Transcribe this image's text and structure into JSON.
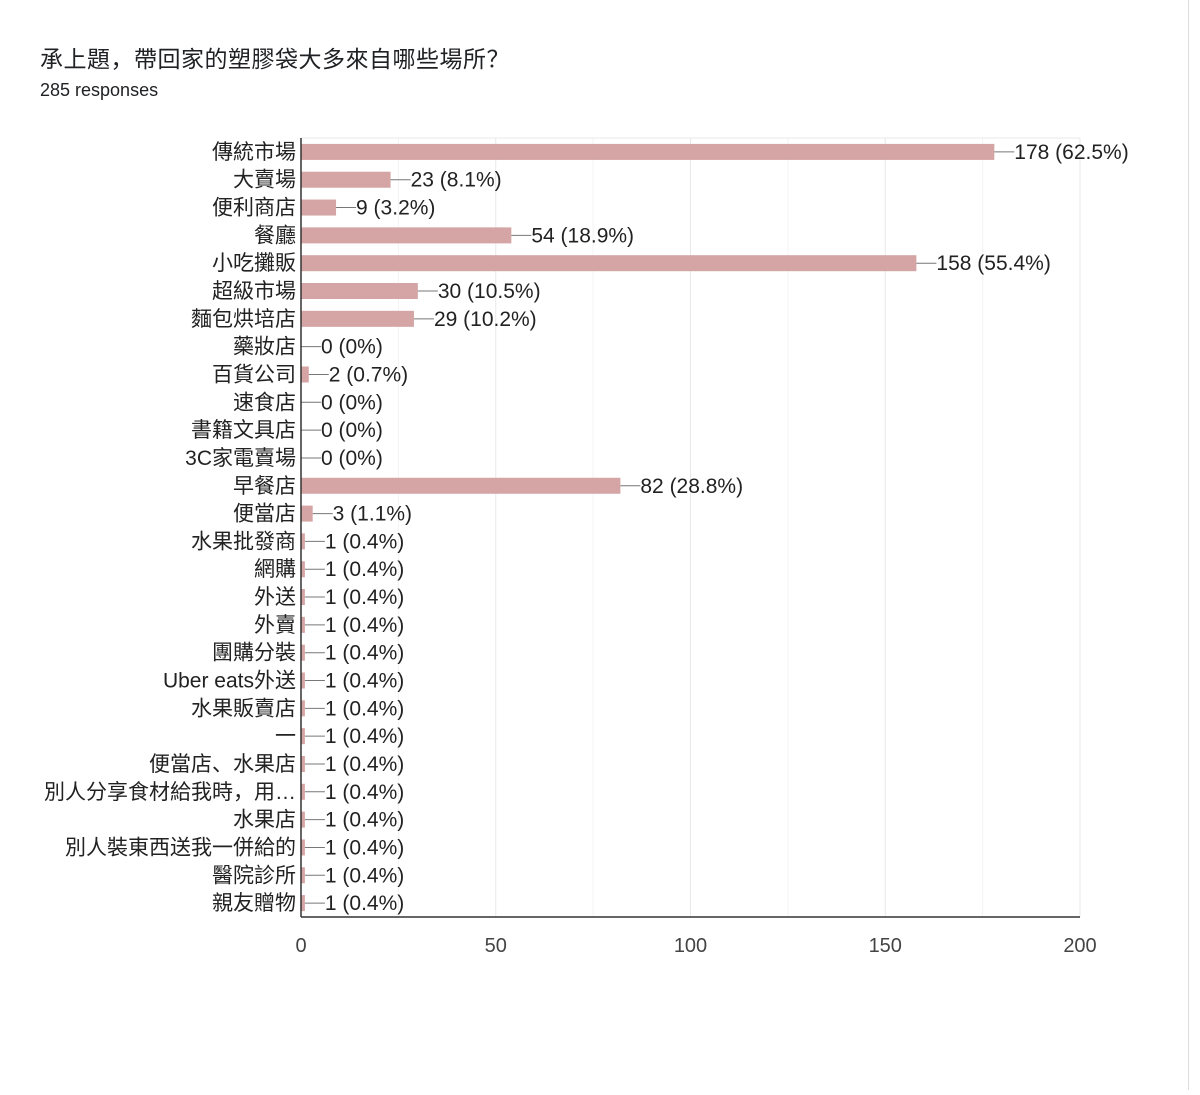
{
  "header": {
    "title": "承上題，帶回家的塑膠袋大多來自哪些場所？",
    "responses": "285 responses"
  },
  "colors": {
    "bar": "#d4a5a4",
    "grid": "#e8e8e8",
    "axis": "#333333",
    "leader": "#777777"
  },
  "chart_data": {
    "type": "bar",
    "orientation": "horizontal",
    "title": "承上題，帶回家的塑膠袋大多來自哪些場所？",
    "xlim": [
      0,
      200
    ],
    "xticks": [
      0,
      50,
      100,
      150,
      200
    ],
    "grid": true,
    "categories": [
      "傳統市場",
      "大賣場",
      "便利商店",
      "餐廳",
      "小吃攤販",
      "超級市場",
      "麵包烘培店",
      "藥妝店",
      "百貨公司",
      "速食店",
      "書籍文具店",
      "3C家電賣場",
      "早餐店",
      "便當店",
      "水果批發商",
      "網購",
      "外送",
      "外賣",
      "團購分裝",
      "Uber eats外送",
      "水果販賣店",
      "一",
      "便當店、水果店",
      "別人分享食材給我時，用…",
      "水果店",
      "別人裝東西送我一併給的",
      "醫院診所",
      "親友贈物"
    ],
    "values": [
      178,
      23,
      9,
      54,
      158,
      30,
      29,
      0,
      2,
      0,
      0,
      0,
      82,
      3,
      1,
      1,
      1,
      1,
      1,
      1,
      1,
      1,
      1,
      1,
      1,
      1,
      1,
      1
    ],
    "percents": [
      "62.5%",
      "8.1%",
      "3.2%",
      "18.9%",
      "55.4%",
      "10.5%",
      "10.2%",
      "0%",
      "0.7%",
      "0%",
      "0%",
      "0%",
      "28.8%",
      "1.1%",
      "0.4%",
      "0.4%",
      "0.4%",
      "0.4%",
      "0.4%",
      "0.4%",
      "0.4%",
      "0.4%",
      "0.4%",
      "0.4%",
      "0.4%",
      "0.4%",
      "0.4%",
      "0.4%"
    ]
  }
}
